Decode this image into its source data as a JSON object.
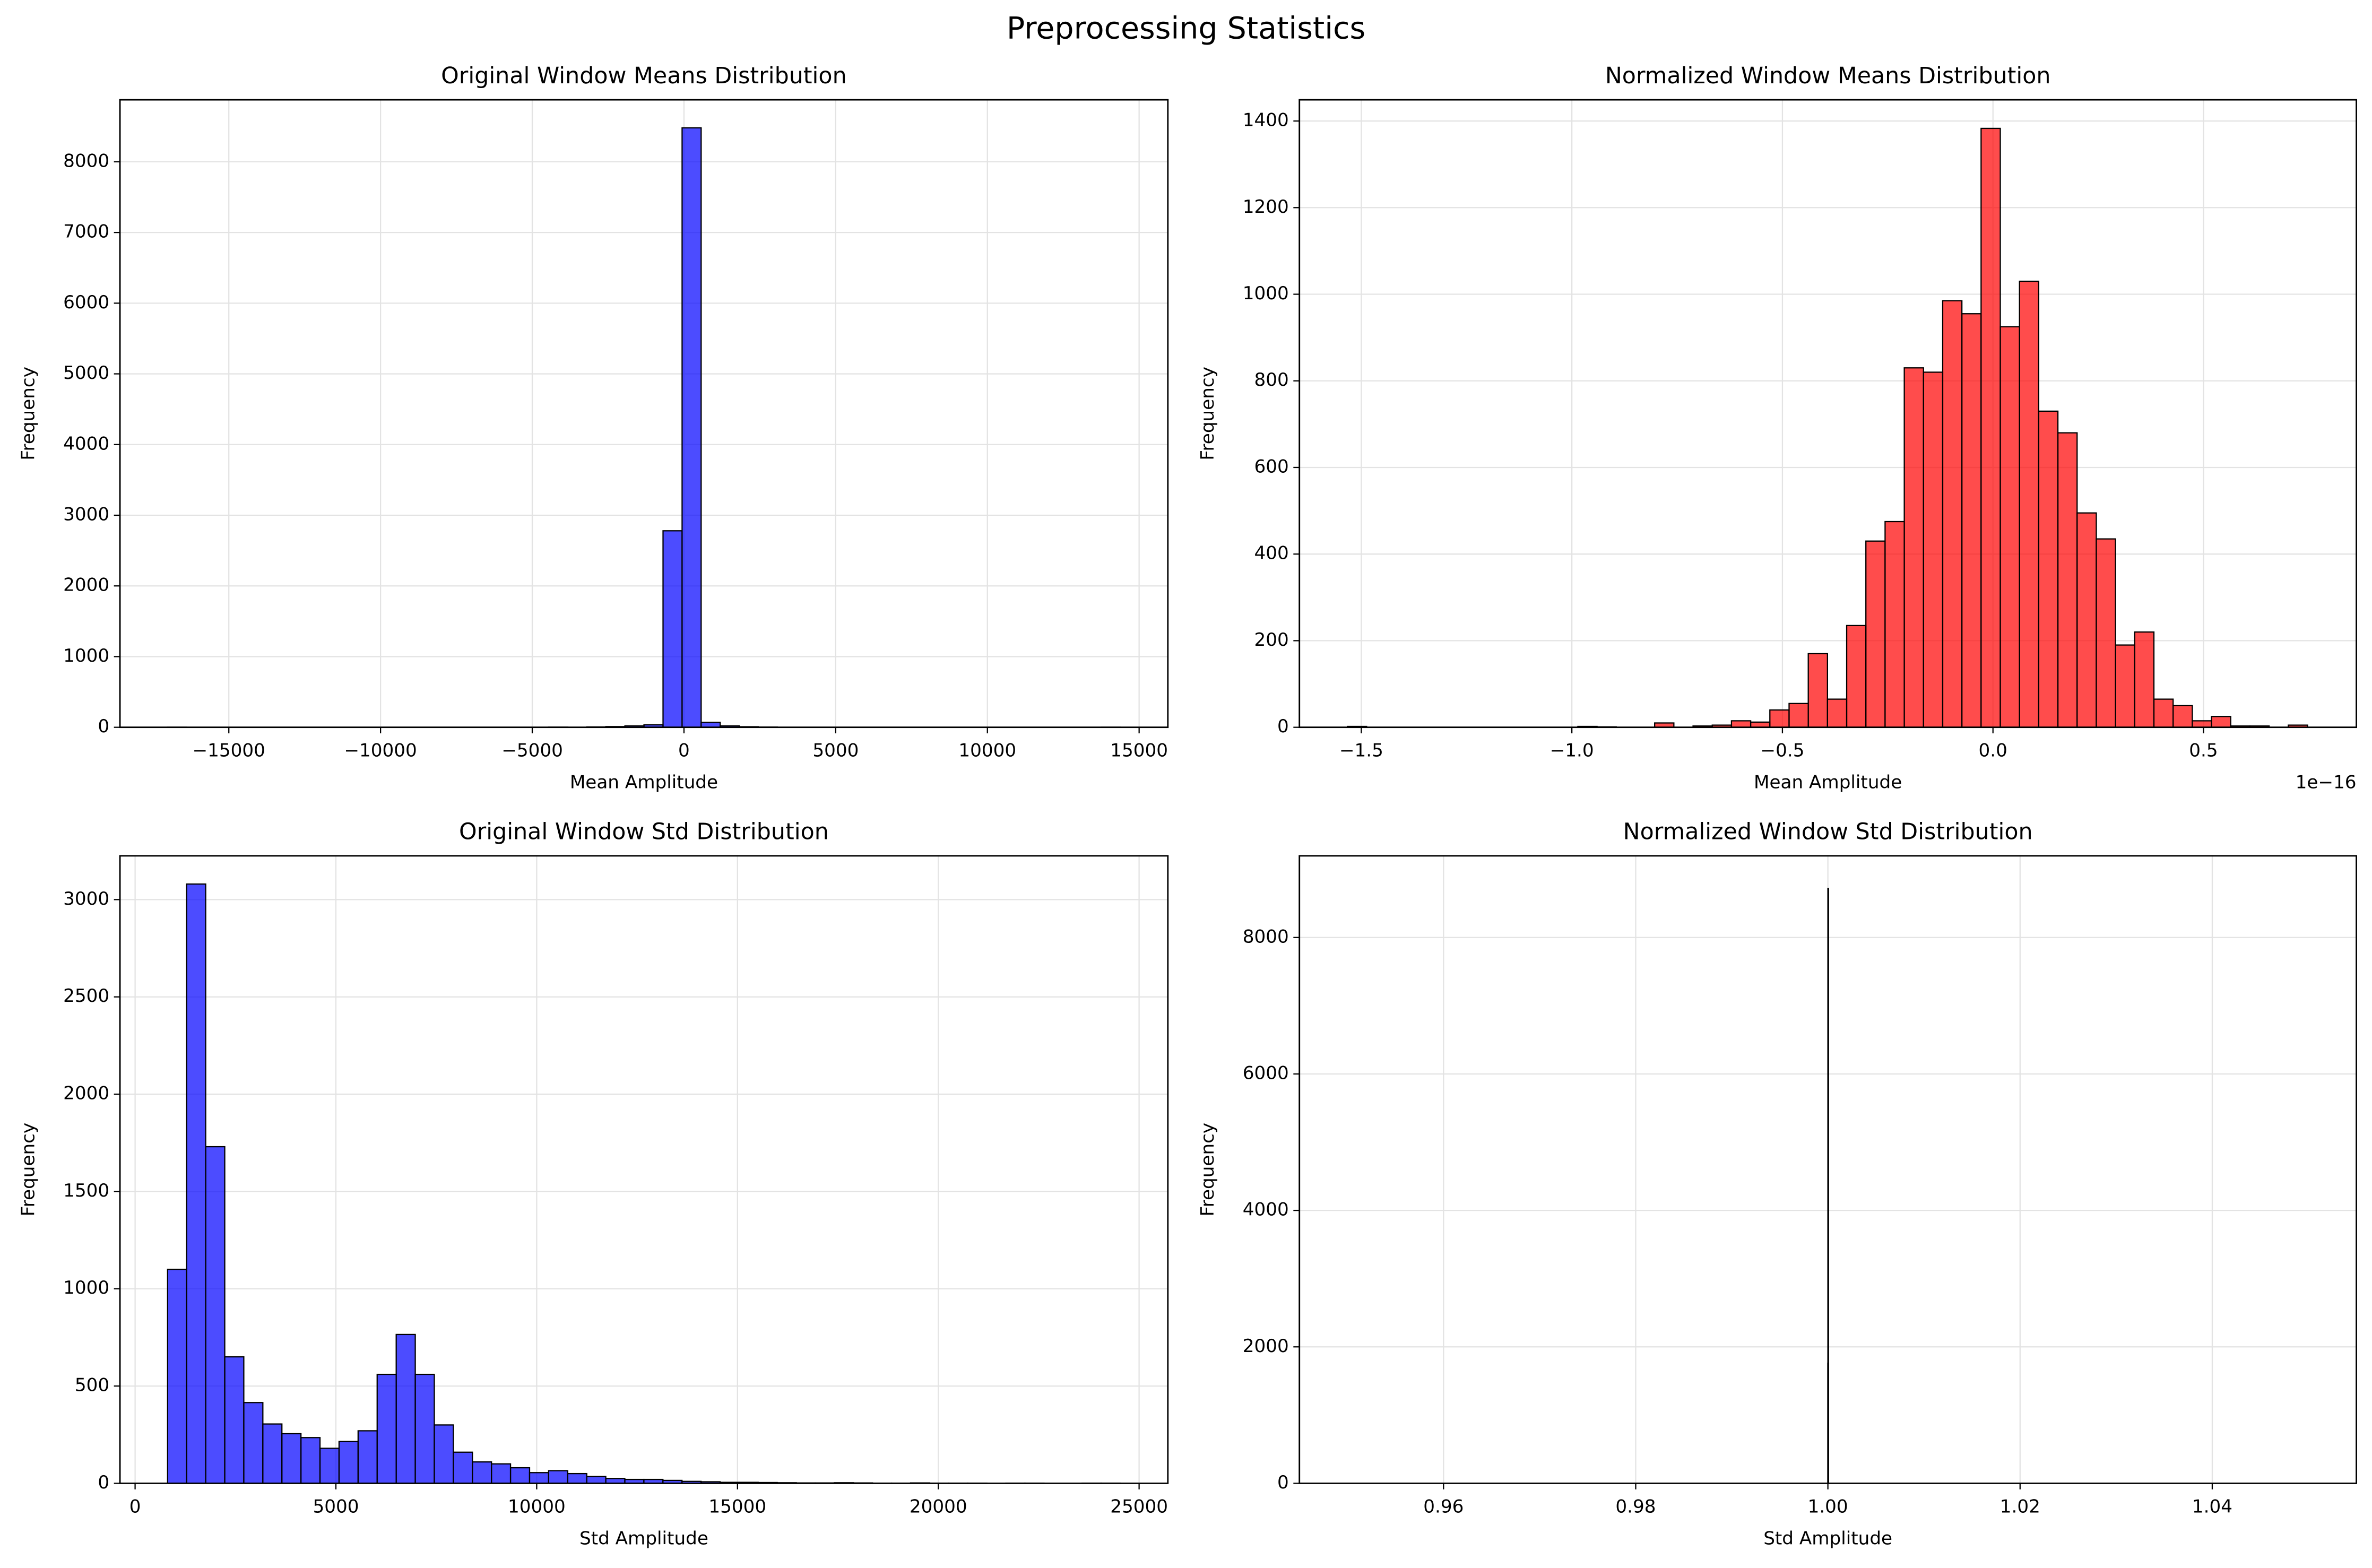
{
  "title": "Preprocessing Statistics",
  "chart_data": [
    {
      "type": "histogram",
      "title": "Original Window Means Distribution",
      "x_label": "Mean Amplitude",
      "y_label": "Frequency",
      "color": "blue",
      "grid": true,
      "bins": [
        -17018,
        -16390,
        -15762,
        -15134,
        -14506,
        -13878,
        -13250,
        -12622,
        -11994,
        -11366,
        -10738,
        -10110,
        -9482,
        -8854,
        -8226,
        -7598,
        -6970,
        -6342,
        -5714,
        -5086,
        -4458,
        -3830,
        -3202,
        -2574,
        -1946,
        -1318,
        -690,
        -62,
        566,
        1194,
        1822,
        2450,
        3078,
        3706,
        4334,
        4962,
        5590,
        6218,
        6846,
        7474,
        8102,
        8730,
        9358,
        9986,
        10614,
        11242,
        11870,
        12498,
        13126,
        13754,
        14382
      ],
      "values": [
        1,
        0,
        0,
        0,
        0,
        0,
        0,
        0,
        0,
        0,
        0,
        0,
        0,
        0,
        0,
        0,
        0,
        0,
        0,
        0,
        2,
        0,
        5,
        10,
        20,
        35,
        2780,
        8480,
        70,
        20,
        8,
        3,
        0,
        0,
        0,
        0,
        0,
        0,
        0,
        0,
        0,
        0,
        0,
        0,
        0,
        0,
        0,
        0,
        0,
        1
      ],
      "xlim": [
        -18588,
        15947
      ],
      "xticks": [
        {
          "value": -15000,
          "label": "−15000"
        },
        {
          "value": -10000,
          "label": "−10000"
        },
        {
          "value": -5000,
          "label": "−5000"
        },
        0,
        5000,
        10000,
        15000
      ],
      "ylim": [
        0,
        8877
      ],
      "yticks": [
        0,
        1000,
        2000,
        3000,
        4000,
        5000,
        6000,
        7000,
        8000
      ]
    },
    {
      "type": "histogram",
      "title": "Normalized Window Means Distribution",
      "x_label": "Mean Amplitude",
      "y_label": "Frequency",
      "x_offset_label": "1e−16",
      "color": "red",
      "grid": true,
      "bins": [
        -1.533,
        -1.4874,
        -1.4418,
        -1.3962,
        -1.3506,
        -1.305,
        -1.2594,
        -1.2138,
        -1.1682,
        -1.1226,
        -1.077,
        -1.0314,
        -0.9858,
        -0.9402,
        -0.8946,
        -0.849,
        -0.8034,
        -0.7578,
        -0.7122,
        -0.6666,
        -0.621,
        -0.5754,
        -0.5298,
        -0.4842,
        -0.4386,
        -0.393,
        -0.3474,
        -0.3018,
        -0.2562,
        -0.2106,
        -0.165,
        -0.1194,
        -0.0738,
        -0.0282,
        0.0174,
        0.063,
        0.1086,
        0.1542,
        0.1998,
        0.2454,
        0.291,
        0.3366,
        0.3822,
        0.4278,
        0.4734,
        0.519,
        0.5646,
        0.6102,
        0.6558,
        0.7014,
        0.747
      ],
      "values": [
        2,
        0,
        0,
        0,
        0,
        0,
        0,
        0,
        0,
        0,
        0,
        0,
        2,
        1,
        0,
        0,
        10,
        0,
        3,
        5,
        15,
        12,
        40,
        55,
        170,
        65,
        235,
        430,
        475,
        830,
        820,
        985,
        955,
        1383,
        925,
        1030,
        730,
        680,
        495,
        435,
        190,
        220,
        65,
        50,
        15,
        25,
        3,
        3,
        0,
        5
      ],
      "xlim": [
        -1.647,
        0.863
      ],
      "xticks": [
        {
          "value": -1.5,
          "label": "−1.5"
        },
        {
          "value": -1.0,
          "label": "−1.0"
        },
        {
          "value": -0.5,
          "label": "−0.5"
        },
        {
          "value": 0,
          "label": "0.0"
        },
        0.5
      ],
      "ylim": [
        0,
        1449
      ],
      "yticks": [
        0,
        200,
        400,
        600,
        800,
        1000,
        1200,
        1400
      ]
    },
    {
      "type": "histogram",
      "title": "Original Window Std Distribution",
      "x_label": "Std Amplitude",
      "y_label": "Frequency",
      "color": "blue",
      "grid": true,
      "bins": [
        809,
        1283.4,
        1757.8,
        2232.2,
        2706.6,
        3181,
        3655.4,
        4129.8,
        4604.2,
        5078.6,
        5553,
        6027.4,
        6501.8,
        6976.2,
        7450.6,
        7925,
        8399.4,
        8873.8,
        9348.2,
        9822.6,
        10297,
        10771.4,
        11245.8,
        11720.2,
        12194.6,
        12669,
        13143.4,
        13617.8,
        14092.2,
        14566.6,
        15041,
        15515.4,
        15989.8,
        16464.2,
        16938.6,
        17413,
        17887.4,
        18361.8,
        18836.2,
        19310.6,
        19785,
        20259.4,
        20733.8,
        21208.2,
        21682.6,
        22157,
        22631.4,
        23105.8,
        23580.2,
        24054.6,
        24529
      ],
      "values": [
        1100,
        3080,
        1730,
        650,
        415,
        305,
        255,
        235,
        180,
        215,
        270,
        560,
        765,
        560,
        300,
        160,
        110,
        100,
        80,
        55,
        65,
        50,
        35,
        25,
        20,
        20,
        15,
        10,
        8,
        5,
        5,
        4,
        3,
        2,
        2,
        3,
        2,
        1,
        1,
        2,
        1,
        1,
        1,
        0,
        1,
        1,
        0,
        0,
        1,
        1
      ],
      "xlim": [
        -377,
        25716
      ],
      "xticks": [
        0,
        5000,
        10000,
        15000,
        20000,
        25000
      ],
      "ylim": [
        0,
        3225
      ],
      "yticks": [
        0,
        500,
        1000,
        1500,
        2000,
        2500,
        3000
      ]
    },
    {
      "type": "histogram",
      "title": "Normalized Window Std Distribution",
      "x_label": "Std Amplitude",
      "y_label": "Frequency",
      "color": "blue",
      "grid": true,
      "bins": [
        0.99999,
        1.0,
        1.00001
      ],
      "values": [
        1760,
        8720
      ],
      "xlim": [
        0.945,
        1.055
      ],
      "xticks": [
        0.96,
        0.98,
        {
          "value": 1.0,
          "label": "1.00"
        },
        1.02,
        1.04
      ],
      "ylim": [
        0,
        9197
      ],
      "yticks": [
        0,
        2000,
        4000,
        6000,
        8000
      ]
    }
  ]
}
